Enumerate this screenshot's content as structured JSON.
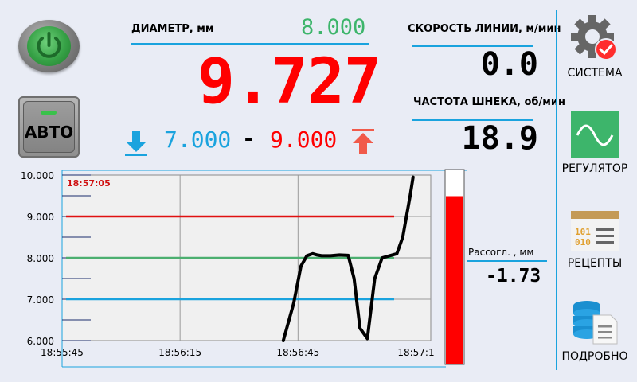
{
  "controls": {
    "power_label": "",
    "auto_label": "АВТО"
  },
  "diameter": {
    "label": "ДИАМЕТР, мм",
    "setpoint": "8.000",
    "value": "9.727",
    "lower_limit": "7.000",
    "dash": "-",
    "upper_limit": "9.000"
  },
  "line_speed": {
    "label": "СКОРОСТЬ ЛИНИИ, м/мин",
    "value": "0.0"
  },
  "screw_freq": {
    "label": "ЧАСТОТА ШНЕКА, об/мин",
    "value": "18.9"
  },
  "mismatch": {
    "label": "Рассогл. , мм",
    "value": "-1.73"
  },
  "nav": [
    {
      "label": "СИСТЕМА",
      "icon": "gear-check-icon"
    },
    {
      "label": "РЕГУЛЯТОР",
      "icon": "sine-wave-icon"
    },
    {
      "label": "РЕЦЕПТЫ",
      "icon": "binary-list-icon"
    },
    {
      "label": "ПОДРОБНО",
      "icon": "database-doc-icon"
    }
  ],
  "colors": {
    "accent": "#1aa3de",
    "alarm": "#ff0000",
    "ok": "#3db56b",
    "lower": "#1aa3de"
  },
  "chart_data": {
    "type": "line",
    "timestamp": "18:57:05",
    "ylim": [
      6.0,
      10.0
    ],
    "yticks": [
      "10.000",
      "9.000",
      "8.000",
      "7.000",
      "6.000"
    ],
    "xticks": [
      "18:55:45",
      "18:56:15",
      "18:56:45",
      "18:57:1"
    ],
    "reference_lines": [
      {
        "value": 9.0,
        "color": "#e01010"
      },
      {
        "value": 8.0,
        "color": "#4caf70"
      },
      {
        "value": 7.0,
        "color": "#1aa3de"
      }
    ],
    "series": [
      {
        "x": [
          30.0,
          31.4,
          32.4,
          33.2,
          34.0,
          34.6,
          35.2,
          36.4,
          37.6,
          38.8,
          39.6,
          40.4,
          41.4,
          42.4,
          43.4,
          44.4,
          45.4,
          46.2,
          47.2,
          47.6
        ],
        "y": [
          6.0,
          6.9,
          7.8,
          8.05,
          8.1,
          8.07,
          8.05,
          8.05,
          8.07,
          8.06,
          7.5,
          6.3,
          6.05,
          7.5,
          8.0,
          8.05,
          8.1,
          8.5,
          9.5,
          9.95
        ]
      }
    ],
    "xlim": [
      0,
      50
    ],
    "bar_gauge": {
      "value": 9.727,
      "ylim": [
        6.0,
        10.0
      ]
    }
  }
}
